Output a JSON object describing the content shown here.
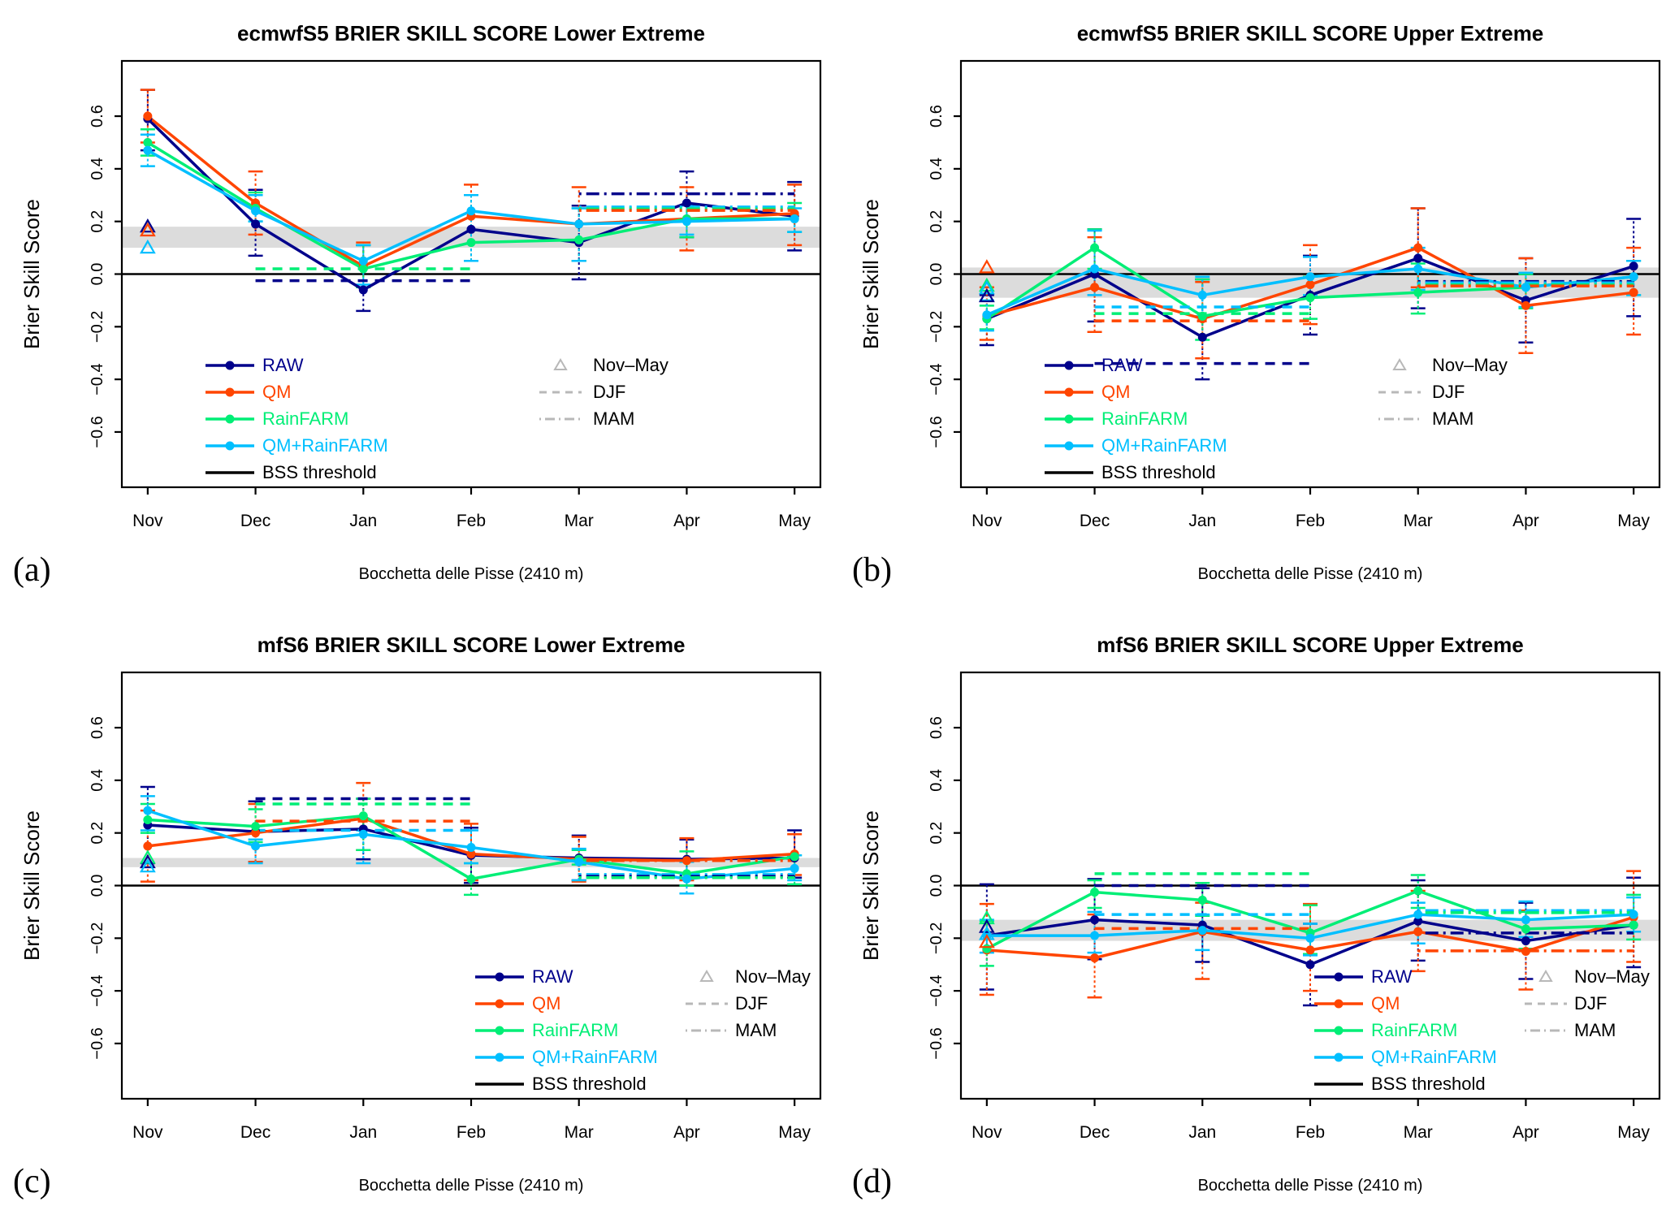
{
  "captions": [
    "(a)",
    "(b)",
    "(c)",
    "(d)"
  ],
  "legend": {
    "series_items": [
      {
        "label": "RAW",
        "color": "#00008B"
      },
      {
        "label": "QM",
        "color": "#FF4500"
      },
      {
        "label": "RainFARM",
        "color": "#00EE76"
      },
      {
        "label": "QM+RainFARM",
        "color": "#00BFFF"
      },
      {
        "label": "BSS threshold",
        "color": "#000000"
      }
    ],
    "season_items": [
      {
        "label": "Nov–May",
        "symbol": "triangle"
      },
      {
        "label": "DJF",
        "symbol": "dashed"
      },
      {
        "label": "MAM",
        "symbol": "dashdot"
      }
    ],
    "season_symbol_color": "#B8B8B8",
    "band_color": "#DCDCDC"
  },
  "chart_data": [
    {
      "type": "line",
      "panel": "a",
      "title": "ecmwfS5 BRIER SKILL SCORE Lower Extreme",
      "xlabel_caption": "Bocchetta delle Pisse (2410 m)",
      "ylabel": "Brier Skill Score",
      "categories": [
        "Nov",
        "Dec",
        "Jan",
        "Feb",
        "Mar",
        "Apr",
        "May"
      ],
      "y_ticks": [
        -0.6,
        -0.4,
        -0.2,
        0.0,
        0.2,
        0.4,
        0.6
      ],
      "ylim": [
        -0.81,
        0.81
      ],
      "bss_threshold": 0,
      "gray_band": [
        0.1,
        0.18
      ],
      "legend_pos": "left",
      "series": [
        {
          "name": "RAW",
          "values": [
            0.59,
            0.19,
            -0.06,
            0.17,
            0.12,
            0.27,
            0.22
          ],
          "err_lo": [
            0.47,
            0.07,
            -0.14,
            0.05,
            -0.02,
            0.14,
            0.09
          ],
          "err_hi": [
            0.7,
            0.32,
            0.11,
            0.3,
            0.26,
            0.39,
            0.35
          ]
        },
        {
          "name": "QM",
          "values": [
            0.6,
            0.27,
            0.03,
            0.22,
            0.19,
            0.21,
            0.23
          ],
          "err_lo": [
            0.5,
            0.15,
            -0.05,
            0.05,
            0.05,
            0.09,
            0.11
          ],
          "err_hi": [
            0.7,
            0.39,
            0.12,
            0.34,
            0.33,
            0.33,
            0.34
          ]
        },
        {
          "name": "RainFARM",
          "values": [
            0.5,
            0.25,
            0.02,
            0.12,
            0.13,
            0.21,
            0.21
          ],
          "err_lo": [
            0.45,
            0.2,
            -0.05,
            0.05,
            0.05,
            0.14,
            0.16
          ],
          "err_hi": [
            0.55,
            0.31,
            0.11,
            0.3,
            0.25,
            0.26,
            0.27
          ]
        },
        {
          "name": "QM+RainFARM",
          "values": [
            0.47,
            0.24,
            0.05,
            0.24,
            0.19,
            0.2,
            0.21
          ],
          "err_lo": [
            0.41,
            0.2,
            -0.04,
            0.05,
            0.05,
            0.15,
            0.16
          ],
          "err_hi": [
            0.53,
            0.3,
            0.11,
            0.3,
            0.25,
            0.26,
            0.25
          ]
        }
      ],
      "nov_may_triangles": [
        {
          "series": "RAW",
          "value": 0.18
        },
        {
          "series": "QM",
          "value": 0.165
        },
        {
          "series": "QM+RainFARM",
          "value": 0.1
        }
      ],
      "djf_lines": [
        {
          "series": "RainFARM",
          "value": 0.02
        },
        {
          "series": "RAW",
          "value": -0.025
        }
      ],
      "mam_lines": [
        {
          "series": "RAW",
          "value": 0.305
        },
        {
          "series": "QM+RainFARM",
          "value": 0.255
        },
        {
          "series": "RainFARM",
          "value": 0.248
        },
        {
          "series": "QM",
          "value": 0.242
        }
      ]
    },
    {
      "type": "line",
      "panel": "b",
      "title": "ecmwfS5 BRIER SKILL SCORE Upper Extreme",
      "xlabel_caption": "Bocchetta delle Pisse (2410 m)",
      "ylabel": "Brier Skill Score",
      "categories": [
        "Nov",
        "Dec",
        "Jan",
        "Feb",
        "Mar",
        "Apr",
        "May"
      ],
      "y_ticks": [
        -0.6,
        -0.4,
        -0.2,
        0.0,
        0.2,
        0.4,
        0.6
      ],
      "ylim": [
        -0.81,
        0.81
      ],
      "bss_threshold": 0,
      "gray_band": [
        -0.09,
        0.025
      ],
      "legend_pos": "left",
      "series": [
        {
          "name": "RAW",
          "values": [
            -0.17,
            0.0,
            -0.24,
            -0.08,
            0.06,
            -0.1,
            0.03
          ],
          "err_lo": [
            -0.27,
            -0.18,
            -0.4,
            -0.23,
            -0.13,
            -0.26,
            -0.16
          ],
          "err_hi": [
            -0.08,
            0.17,
            -0.02,
            0.07,
            0.25,
            0.06,
            0.21
          ]
        },
        {
          "name": "QM",
          "values": [
            -0.16,
            -0.05,
            -0.17,
            -0.04,
            0.1,
            -0.12,
            -0.07
          ],
          "err_lo": [
            -0.25,
            -0.22,
            -0.32,
            -0.19,
            -0.05,
            -0.3,
            -0.23
          ],
          "err_hi": [
            -0.05,
            0.14,
            -0.03,
            0.11,
            0.25,
            0.06,
            0.1
          ]
        },
        {
          "name": "RainFARM",
          "values": [
            -0.17,
            0.1,
            -0.16,
            -0.09,
            -0.07,
            -0.05,
            -0.01
          ],
          "err_lo": [
            -0.21,
            0.02,
            -0.25,
            -0.17,
            -0.15,
            -0.13,
            -0.08
          ],
          "err_hi": [
            -0.12,
            0.17,
            -0.02,
            -0.01,
            0.04,
            0.0,
            0.05
          ]
        },
        {
          "name": "QM+RainFARM",
          "values": [
            -0.155,
            0.02,
            -0.08,
            -0.01,
            0.02,
            -0.05,
            -0.01
          ],
          "err_lo": [
            -0.215,
            -0.08,
            -0.16,
            -0.08,
            -0.06,
            -0.125,
            -0.08
          ],
          "err_hi": [
            -0.1,
            0.165,
            -0.01,
            0.065,
            0.1,
            0.005,
            0.05
          ]
        }
      ],
      "nov_may_triangles": [
        {
          "series": "QM",
          "value": 0.025
        },
        {
          "series": "RainFARM",
          "value": -0.045
        },
        {
          "series": "QM+RainFARM",
          "value": -0.055
        },
        {
          "series": "RAW",
          "value": -0.085
        }
      ],
      "djf_lines": [
        {
          "series": "QM+RainFARM",
          "value": -0.125
        },
        {
          "series": "RainFARM",
          "value": -0.15
        },
        {
          "series": "QM",
          "value": -0.178
        },
        {
          "series": "RAW",
          "value": -0.34
        }
      ],
      "mam_lines": [
        {
          "series": "RAW",
          "value": -0.028
        },
        {
          "series": "QM+RainFARM",
          "value": -0.033
        },
        {
          "series": "RainFARM",
          "value": -0.04
        },
        {
          "series": "QM",
          "value": -0.045
        }
      ]
    },
    {
      "type": "line",
      "panel": "c",
      "title": "mfS6 BRIER SKILL SCORE Lower Extreme",
      "xlabel_caption": "Bocchetta delle Pisse (2410 m)",
      "ylabel": "Brier Skill Score",
      "categories": [
        "Nov",
        "Dec",
        "Jan",
        "Feb",
        "Mar",
        "Apr",
        "May"
      ],
      "y_ticks": [
        -0.6,
        -0.4,
        -0.2,
        0.0,
        0.2,
        0.4,
        0.6
      ],
      "ylim": [
        -0.81,
        0.81
      ],
      "bss_threshold": 0,
      "gray_band": [
        0.07,
        0.105
      ],
      "legend_pos": "right",
      "series": [
        {
          "name": "RAW",
          "values": [
            0.23,
            0.205,
            0.215,
            0.115,
            0.105,
            0.1,
            0.105
          ],
          "err_lo": [
            0.085,
            0.09,
            0.1,
            0.01,
            0.02,
            0.03,
            0.03
          ],
          "err_hi": [
            0.375,
            0.32,
            0.33,
            0.22,
            0.19,
            0.175,
            0.21
          ]
        },
        {
          "name": "QM",
          "values": [
            0.15,
            0.2,
            0.255,
            0.12,
            0.1,
            0.095,
            0.12
          ],
          "err_lo": [
            0.015,
            0.09,
            0.135,
            0.02,
            0.015,
            0.02,
            0.04
          ],
          "err_hi": [
            0.285,
            0.31,
            0.39,
            0.235,
            0.185,
            0.18,
            0.195
          ]
        },
        {
          "name": "RainFARM",
          "values": [
            0.25,
            0.225,
            0.265,
            0.025,
            0.1,
            0.045,
            0.11
          ],
          "err_lo": [
            0.2,
            0.165,
            0.135,
            -0.035,
            0.08,
            0.0,
            0.005
          ],
          "err_hi": [
            0.31,
            0.29,
            0.33,
            0.085,
            0.135,
            0.13,
            0.115
          ]
        },
        {
          "name": "QM+RainFARM",
          "values": [
            0.285,
            0.15,
            0.195,
            0.145,
            0.09,
            0.025,
            0.065
          ],
          "err_lo": [
            0.21,
            0.085,
            0.085,
            0.085,
            0.02,
            -0.03,
            0.02
          ],
          "err_hi": [
            0.34,
            0.175,
            0.21,
            0.21,
            0.14,
            0.09,
            0.115
          ]
        }
      ],
      "nov_may_triangles": [
        {
          "series": "RainFARM",
          "value": 0.105
        },
        {
          "series": "RAW",
          "value": 0.088
        },
        {
          "series": "QM+RainFARM",
          "value": 0.072
        }
      ],
      "djf_lines": [
        {
          "series": "RAW",
          "value": 0.33
        },
        {
          "series": "RainFARM",
          "value": 0.31
        },
        {
          "series": "QM",
          "value": 0.245
        },
        {
          "series": "QM+RainFARM",
          "value": 0.21
        }
      ],
      "mam_lines": [
        {
          "series": "QM",
          "value": 0.095
        },
        {
          "series": "QM+RainFARM",
          "value": 0.042
        },
        {
          "series": "RAW",
          "value": 0.035
        },
        {
          "series": "RainFARM",
          "value": 0.03
        }
      ]
    },
    {
      "type": "line",
      "panel": "d",
      "title": "mfS6 BRIER SKILL SCORE Upper Extreme",
      "xlabel_caption": "Bocchetta delle Pisse (2410 m)",
      "ylabel": "Brier Skill Score",
      "categories": [
        "Nov",
        "Dec",
        "Jan",
        "Feb",
        "Mar",
        "Apr",
        "May"
      ],
      "y_ticks": [
        -0.6,
        -0.4,
        -0.2,
        0.0,
        0.2,
        0.4,
        0.6
      ],
      "ylim": [
        -0.81,
        0.81
      ],
      "bss_threshold": 0,
      "gray_band": [
        -0.21,
        -0.13
      ],
      "legend_pos": "right",
      "series": [
        {
          "name": "RAW",
          "values": [
            -0.19,
            -0.13,
            -0.15,
            -0.3,
            -0.135,
            -0.21,
            -0.15
          ],
          "err_lo": [
            -0.395,
            -0.28,
            -0.29,
            -0.455,
            -0.285,
            -0.355,
            -0.31
          ],
          "err_hi": [
            0.005,
            0.025,
            -0.01,
            -0.145,
            0.02,
            -0.065,
            0.03
          ]
        },
        {
          "name": "QM",
          "values": [
            -0.245,
            -0.275,
            -0.175,
            -0.245,
            -0.175,
            -0.25,
            -0.12
          ],
          "err_lo": [
            -0.415,
            -0.425,
            -0.355,
            -0.4,
            -0.325,
            -0.395,
            -0.29
          ],
          "err_hi": [
            -0.07,
            -0.11,
            -0.065,
            -0.07,
            -0.02,
            -0.095,
            0.055
          ]
        },
        {
          "name": "RainFARM",
          "values": [
            -0.24,
            -0.025,
            -0.055,
            -0.18,
            -0.02,
            -0.165,
            -0.15
          ],
          "err_lo": [
            -0.305,
            -0.085,
            -0.115,
            -0.26,
            -0.085,
            -0.24,
            -0.205
          ],
          "err_hi": [
            -0.135,
            0.02,
            0.01,
            -0.075,
            0.04,
            -0.1,
            -0.035
          ]
        },
        {
          "name": "QM+RainFARM",
          "values": [
            -0.19,
            -0.19,
            -0.17,
            -0.2,
            -0.11,
            -0.13,
            -0.11
          ],
          "err_lo": [
            -0.255,
            -0.255,
            -0.245,
            -0.265,
            -0.22,
            -0.195,
            -0.175
          ],
          "err_hi": [
            -0.13,
            -0.1,
            -0.11,
            -0.145,
            -0.065,
            -0.06,
            -0.045
          ]
        }
      ],
      "nov_may_triangles": [
        {
          "series": "RainFARM",
          "value": -0.125
        },
        {
          "series": "RAW",
          "value": -0.158
        },
        {
          "series": "QM+RainFARM",
          "value": -0.185
        },
        {
          "series": "QM",
          "value": -0.215
        }
      ],
      "djf_lines": [
        {
          "series": "RainFARM",
          "value": 0.045
        },
        {
          "series": "RAW",
          "value": 0.0
        },
        {
          "series": "QM+RainFARM",
          "value": -0.11
        },
        {
          "series": "QM",
          "value": -0.163
        }
      ],
      "mam_lines": [
        {
          "series": "QM+RainFARM",
          "value": -0.095
        },
        {
          "series": "RainFARM",
          "value": -0.103
        },
        {
          "series": "RAW",
          "value": -0.18
        },
        {
          "series": "QM",
          "value": -0.248
        }
      ]
    }
  ]
}
